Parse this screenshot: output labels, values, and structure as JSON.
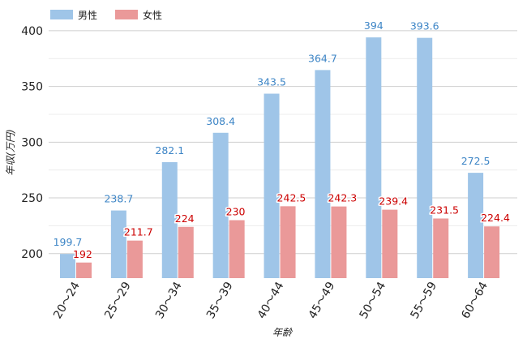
{
  "chart_data": {
    "type": "bar",
    "xlabel": "年齢",
    "ylabel": "年収(万円)",
    "ylim": [
      178,
      413
    ],
    "yticks": [
      200,
      250,
      300,
      350,
      400
    ],
    "grid": true,
    "legend_position": "top-left",
    "categories": [
      "20〜24",
      "25〜29",
      "30〜34",
      "35〜39",
      "40〜44",
      "45〜49",
      "50〜54",
      "55〜59",
      "60〜64"
    ],
    "series": [
      {
        "name": "男性",
        "color": "#9fc5e8",
        "label_color": "#3d85c6",
        "values": [
          199.7,
          238.7,
          282.1,
          308.4,
          343.5,
          364.7,
          394,
          393.6,
          272.5
        ],
        "labels": [
          "199.7",
          "238.7",
          "282.1",
          "308.4",
          "343.5",
          "364.7",
          "394",
          "393.6",
          "272.5"
        ]
      },
      {
        "name": "女性",
        "color": "#ea9999",
        "label_color": "#cc0000",
        "values": [
          192,
          211.7,
          224,
          230,
          242.5,
          242.3,
          239.4,
          231.5,
          224.4
        ],
        "labels": [
          "192",
          "211.7",
          "224",
          "230",
          "242.5",
          "242.3",
          "239.4",
          "231.5",
          "224.4"
        ]
      }
    ]
  }
}
